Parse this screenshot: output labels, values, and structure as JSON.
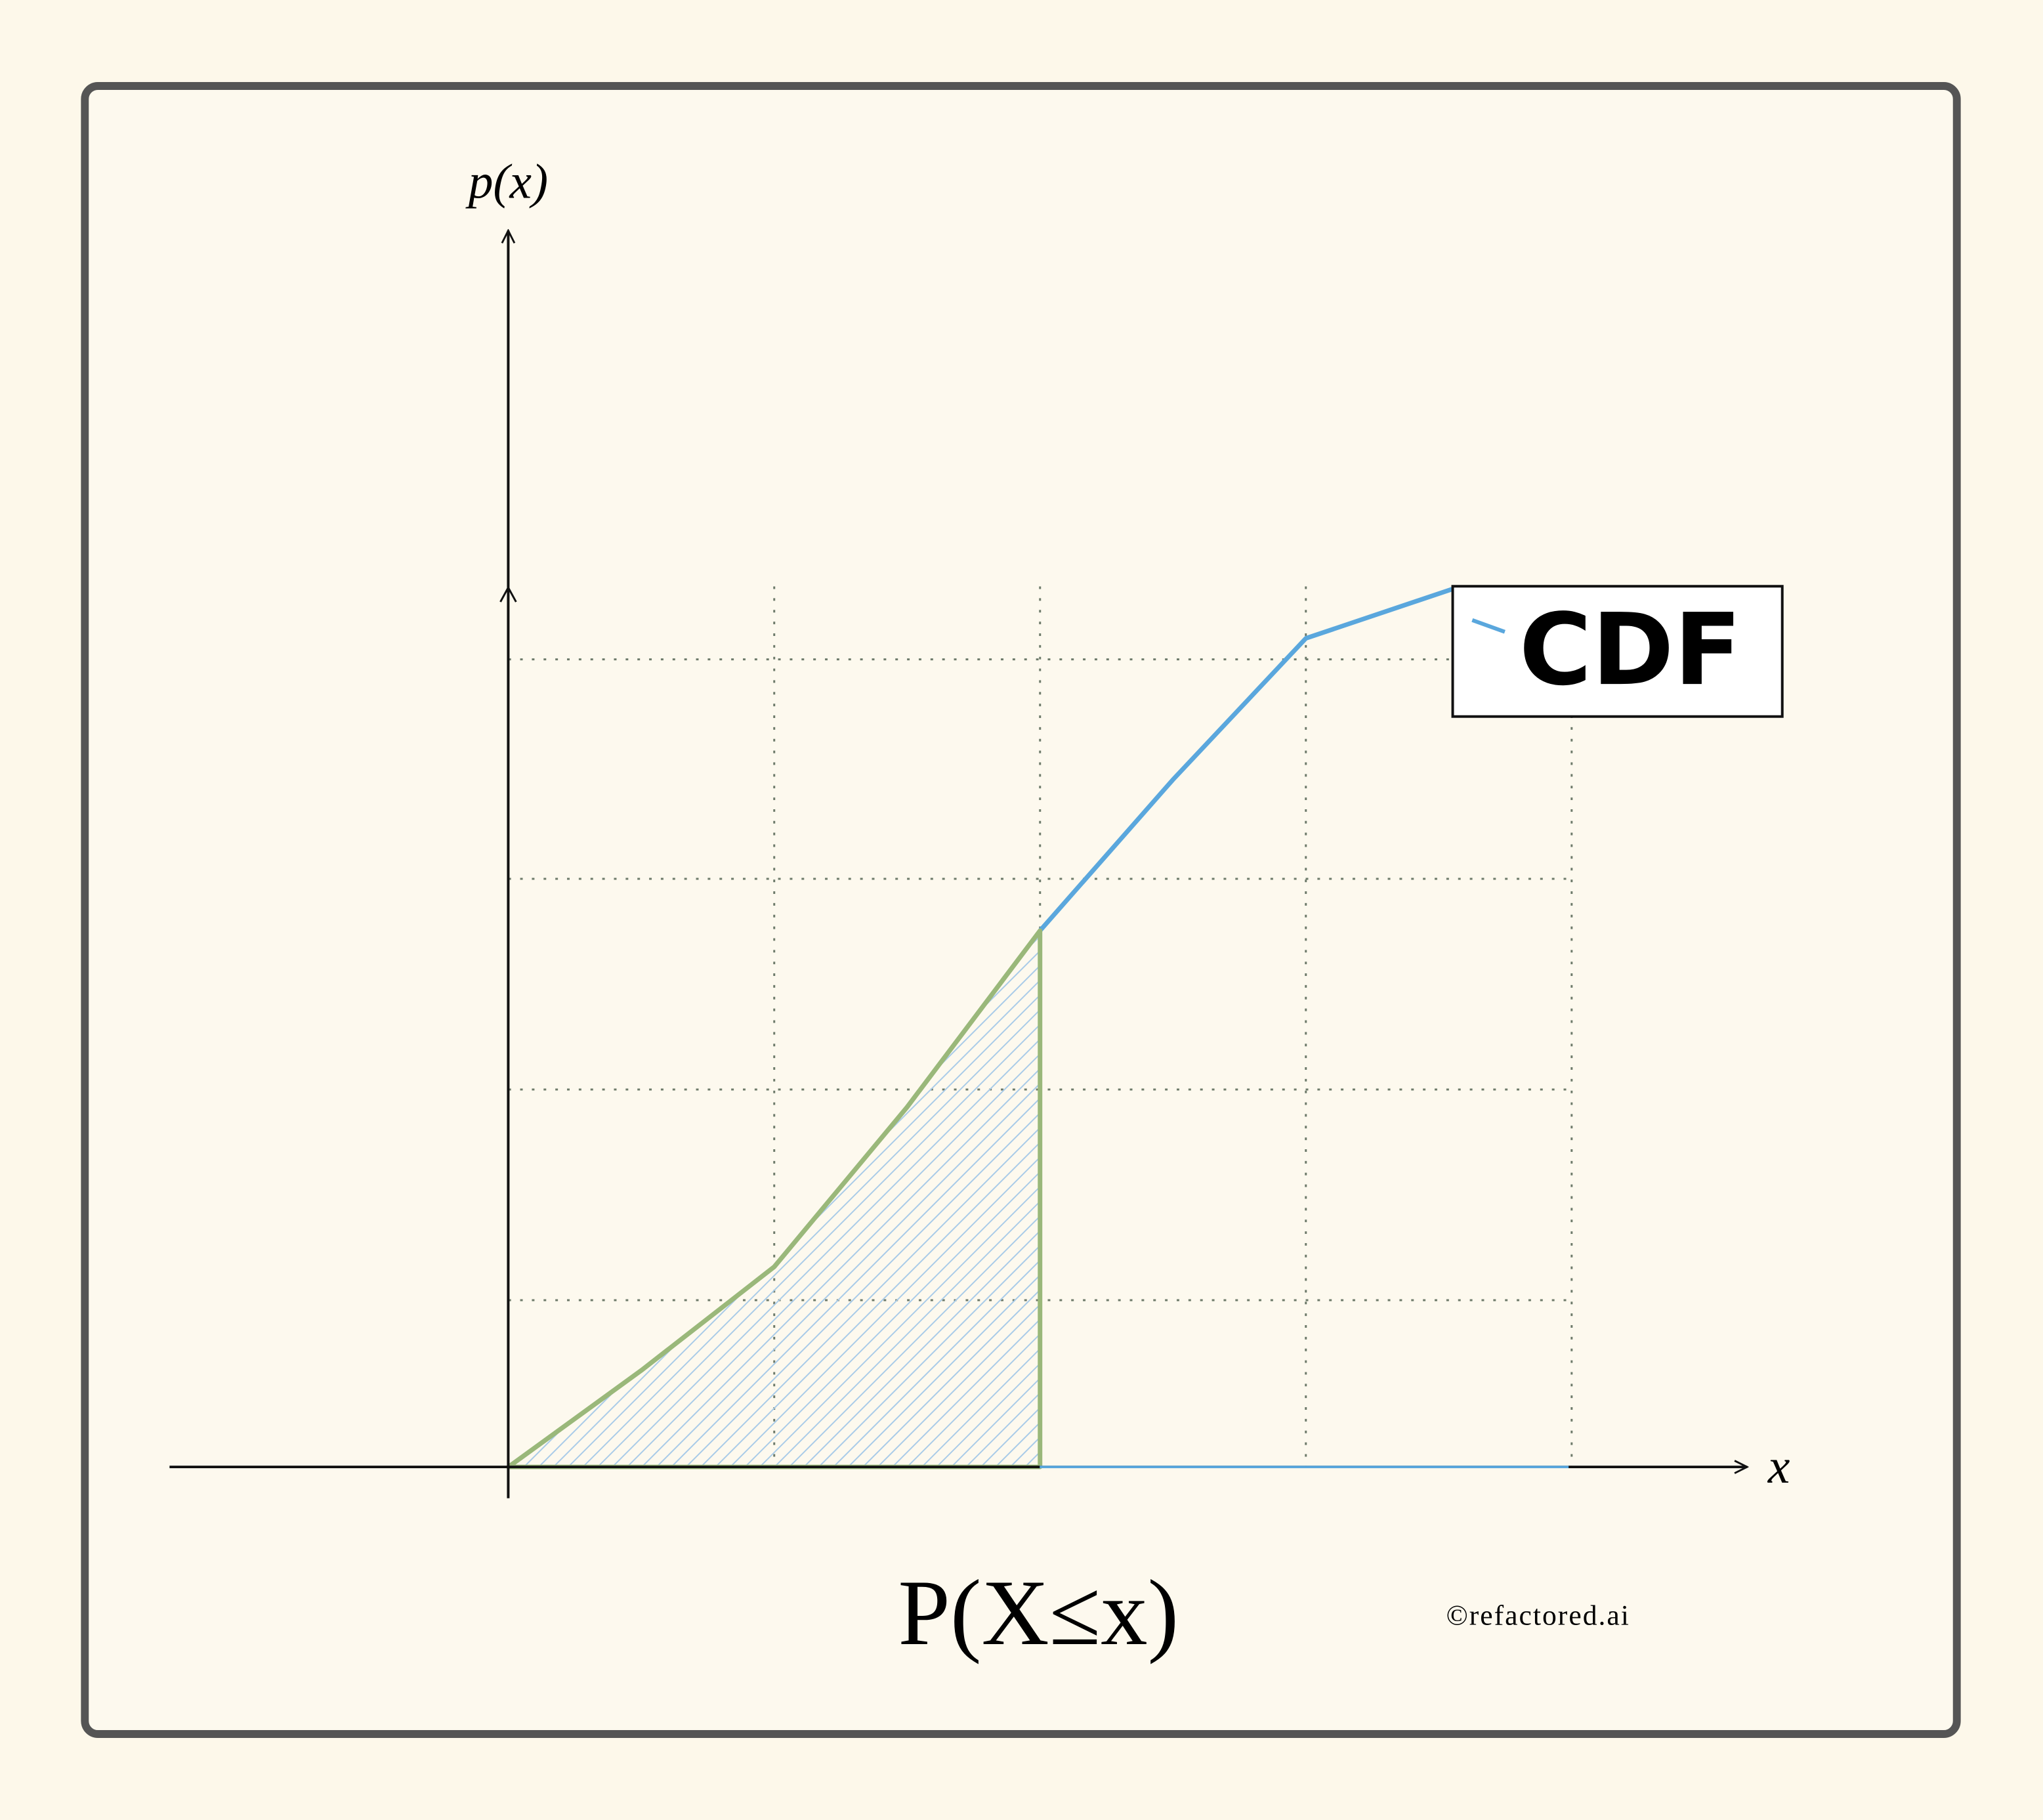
{
  "chart_data": {
    "type": "line",
    "axis_label_y": "p(x)",
    "axis_label_x": "x",
    "annotation": "P(X≤x)",
    "credit": "©refactored.ai",
    "xlim": [
      -1.27,
      4.66
    ],
    "ylim": [
      0,
      1.41
    ],
    "xticks": [
      1,
      2,
      3,
      4
    ],
    "yticks": [
      0.19,
      0.43,
      0.67,
      0.92
    ],
    "grid": true,
    "legend": "upper right",
    "series": [
      {
        "name": "CDF",
        "color": "#5aa7dd",
        "x": [
          2,
          2.5,
          3,
          3.55
        ],
        "values": [
          0.611,
          0.783,
          0.944,
          1.0
        ]
      },
      {
        "color": "#9ab87a",
        "x": [
          0,
          0.5,
          1,
          1.5,
          2
        ],
        "values": [
          0,
          0.11,
          0.228,
          0.41,
          0.611
        ],
        "fill": "hatch"
      }
    ]
  }
}
